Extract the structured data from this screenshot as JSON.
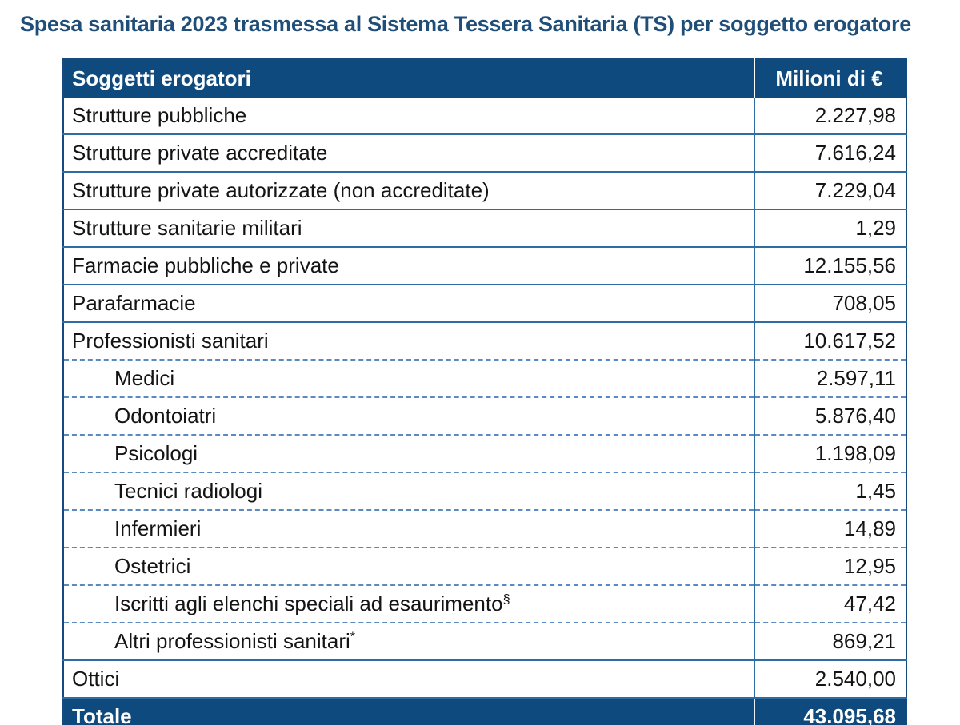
{
  "page_title": "Spesa sanitaria 2023 trasmessa al Sistema Tessera Sanitaria (TS) per soggetto erogatore",
  "table": {
    "header": {
      "col1": "Soggetti erogatori",
      "col2": "Milioni di €"
    },
    "rows": [
      {
        "label": "Strutture pubbliche",
        "value": "2.227,98"
      },
      {
        "label": "Strutture private accreditate",
        "value": "7.616,24"
      },
      {
        "label": "Strutture private autorizzate (non accreditate)",
        "value": "7.229,04"
      },
      {
        "label": "Strutture sanitarie militari",
        "value": "1,29"
      },
      {
        "label": "Farmacie pubbliche e private",
        "value": "12.155,56"
      },
      {
        "label": "Parafarmacie",
        "value": "708,05"
      },
      {
        "label": "Professionisti sanitari",
        "value": "10.617,52"
      },
      {
        "label": "Medici",
        "value": "2.597,11",
        "indent": true
      },
      {
        "label": "Odontoiatri",
        "value": "5.876,40",
        "indent": true
      },
      {
        "label": "Psicologi",
        "value": "1.198,09",
        "indent": true
      },
      {
        "label": "Tecnici radiologi",
        "value": "1,45",
        "indent": true
      },
      {
        "label": "Infermieri",
        "value": "14,89",
        "indent": true
      },
      {
        "label": "Ostetrici",
        "value": "12,95",
        "indent": true
      },
      {
        "label": "Iscritti agli elenchi speciali ad esaurimento",
        "marker": "§",
        "value": "47,42",
        "indent": true
      },
      {
        "label": "Altri professionisti sanitari",
        "marker": "*",
        "value": "869,21",
        "indent": true
      },
      {
        "label": "Ottici",
        "value": "2.540,00"
      }
    ],
    "total": {
      "label": "Totale",
      "value": "43.095,68"
    }
  },
  "colors": {
    "title_text": "#1F4E79",
    "header_bg": "#0F4A7E",
    "header_text": "#FFFFFF",
    "border_solid": "#2E6DA4",
    "border_dashed": "#5B89C2",
    "outer_border": "#16497C",
    "body_text": "#141414"
  }
}
